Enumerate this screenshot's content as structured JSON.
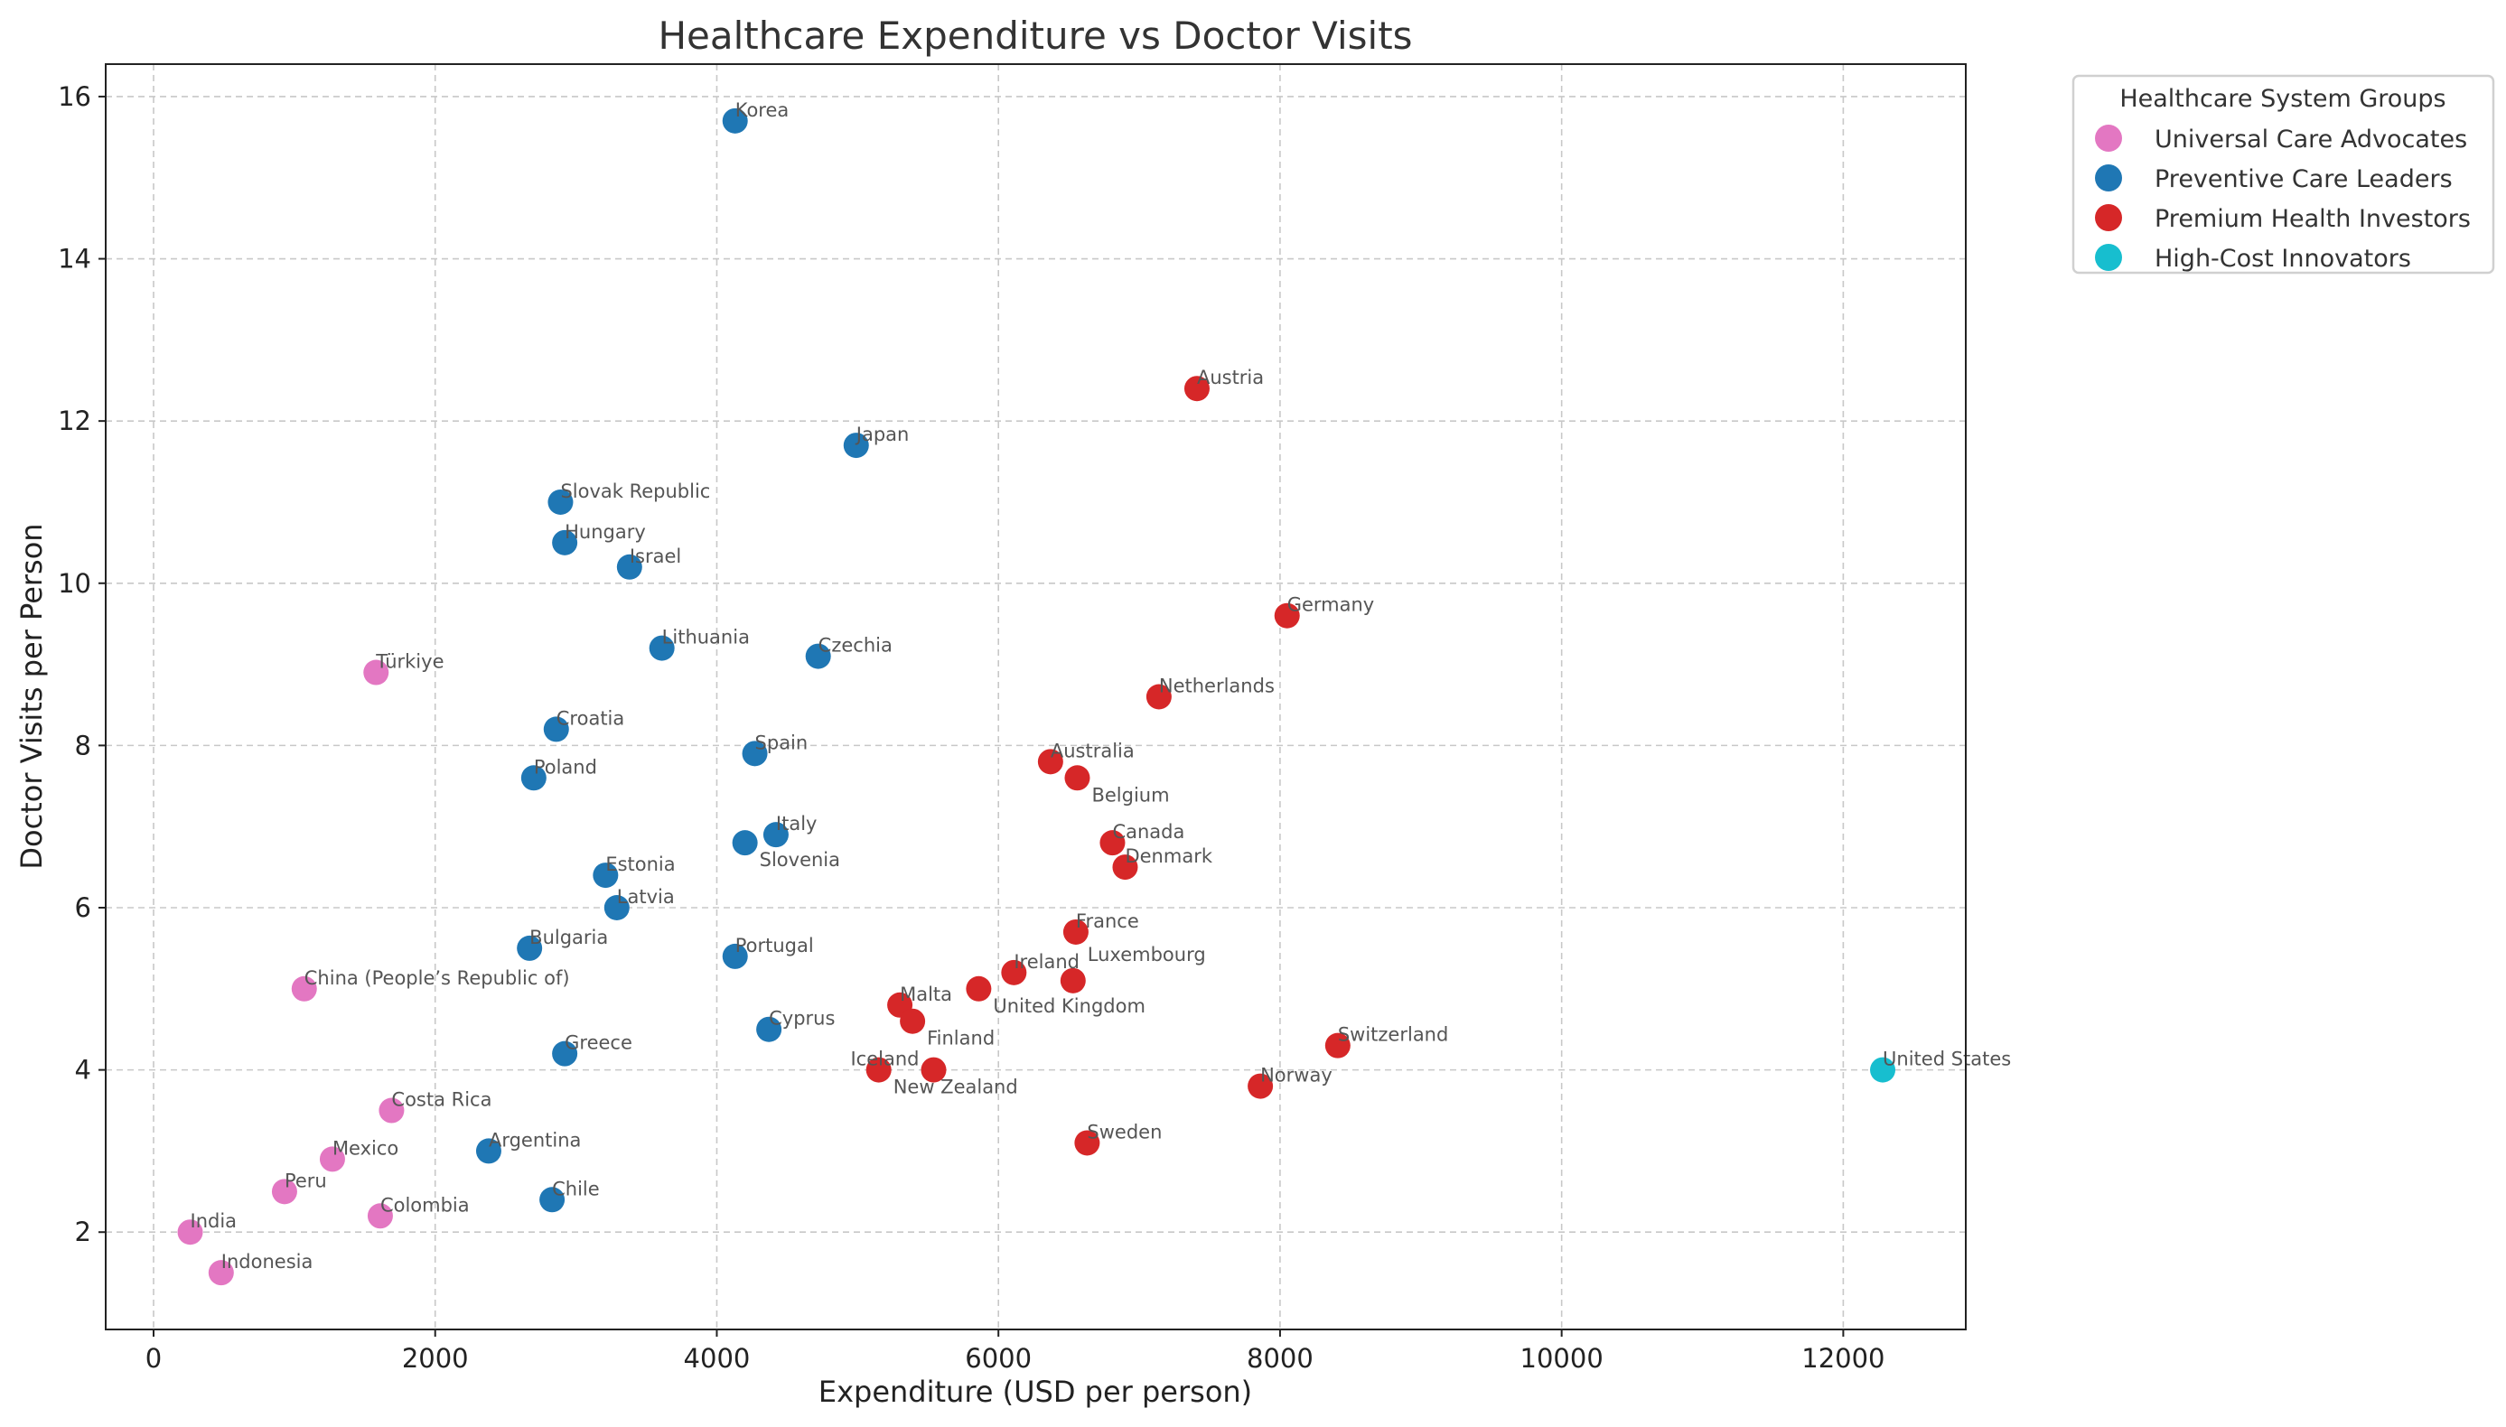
{
  "chart_data": {
    "type": "scatter",
    "title": "Healthcare Expenditure vs Doctor Visits",
    "xlabel": "Expenditure (USD per person)",
    "ylabel": "Doctor Visits per Person",
    "xlim": [
      -340,
      12870
    ],
    "ylim": [
      0.8,
      16.4
    ],
    "xticks": [
      0,
      2000,
      4000,
      6000,
      8000,
      10000,
      12000
    ],
    "yticks": [
      2,
      4,
      6,
      8,
      10,
      12,
      14,
      16
    ],
    "grid": true,
    "legend": {
      "title": "Healthcare System Groups",
      "placement": "outside-top-right"
    },
    "series": [
      {
        "name": "Universal Care Advocates",
        "color": "#e377c2",
        "points": [
          {
            "label": "Türkiye",
            "x": 1580,
            "y": 8.9
          },
          {
            "label": "China (People’s Republic of)",
            "x": 1070,
            "y": 5.0
          },
          {
            "label": "Costa Rica",
            "x": 1690,
            "y": 3.5
          },
          {
            "label": "Mexico",
            "x": 1270,
            "y": 2.9
          },
          {
            "label": "Peru",
            "x": 930,
            "y": 2.5
          },
          {
            "label": "Colombia",
            "x": 1610,
            "y": 2.2
          },
          {
            "label": "India",
            "x": 260,
            "y": 2.0
          },
          {
            "label": "Indonesia",
            "x": 480,
            "y": 1.5
          }
        ]
      },
      {
        "name": "Preventive Care Leaders",
        "color": "#1f77b4",
        "points": [
          {
            "label": "Korea",
            "x": 4130,
            "y": 15.7
          },
          {
            "label": "Japan",
            "x": 4990,
            "y": 11.7
          },
          {
            "label": "Slovak Republic",
            "x": 2890,
            "y": 11.0
          },
          {
            "label": "Hungary",
            "x": 2920,
            "y": 10.5
          },
          {
            "label": "Israel",
            "x": 3380,
            "y": 10.2
          },
          {
            "label": "Lithuania",
            "x": 3610,
            "y": 9.2
          },
          {
            "label": "Czechia",
            "x": 4720,
            "y": 9.1
          },
          {
            "label": "Croatia",
            "x": 2860,
            "y": 8.2
          },
          {
            "label": "Spain",
            "x": 4270,
            "y": 7.9
          },
          {
            "label": "Poland",
            "x": 2700,
            "y": 7.6
          },
          {
            "label": "Italy",
            "x": 4420,
            "y": 6.9
          },
          {
            "label": "Slovenia",
            "x": 4200,
            "y": 6.8
          },
          {
            "label": "Estonia",
            "x": 3210,
            "y": 6.4
          },
          {
            "label": "Latvia",
            "x": 3290,
            "y": 6.0
          },
          {
            "label": "Bulgaria",
            "x": 2670,
            "y": 5.5
          },
          {
            "label": "Portugal",
            "x": 4130,
            "y": 5.4
          },
          {
            "label": "Cyprus",
            "x": 4370,
            "y": 4.5
          },
          {
            "label": "Greece",
            "x": 2920,
            "y": 4.2
          },
          {
            "label": "Argentina",
            "x": 2380,
            "y": 3.0
          },
          {
            "label": "Chile",
            "x": 2830,
            "y": 2.4
          }
        ]
      },
      {
        "name": "Premium Health Investors",
        "color": "#d62728",
        "points": [
          {
            "label": "Austria",
            "x": 7410,
            "y": 12.4
          },
          {
            "label": "Germany",
            "x": 8050,
            "y": 9.6
          },
          {
            "label": "Netherlands",
            "x": 7140,
            "y": 8.6
          },
          {
            "label": "Australia",
            "x": 6370,
            "y": 7.8
          },
          {
            "label": "Belgium",
            "x": 6560,
            "y": 7.6
          },
          {
            "label": "Canada",
            "x": 6810,
            "y": 6.8
          },
          {
            "label": "Denmark",
            "x": 6900,
            "y": 6.5
          },
          {
            "label": "France",
            "x": 6550,
            "y": 5.7
          },
          {
            "label": "Ireland",
            "x": 6110,
            "y": 5.2
          },
          {
            "label": "Luxembourg",
            "x": 6530,
            "y": 5.1
          },
          {
            "label": "United Kingdom",
            "x": 5860,
            "y": 5.0
          },
          {
            "label": "Malta",
            "x": 5300,
            "y": 4.8
          },
          {
            "label": "Finland",
            "x": 5390,
            "y": 4.6
          },
          {
            "label": "Switzerland",
            "x": 8410,
            "y": 4.3
          },
          {
            "label": "New Zealand",
            "x": 5150,
            "y": 4.0
          },
          {
            "label": "Iceland",
            "x": 5540,
            "y": 4.0
          },
          {
            "label": "Norway",
            "x": 7860,
            "y": 3.8
          },
          {
            "label": "Sweden",
            "x": 6630,
            "y": 3.1
          }
        ]
      },
      {
        "name": "High-Cost Innovators",
        "color": "#17becf",
        "points": [
          {
            "label": "United States",
            "x": 12280,
            "y": 4.0
          }
        ]
      }
    ]
  }
}
